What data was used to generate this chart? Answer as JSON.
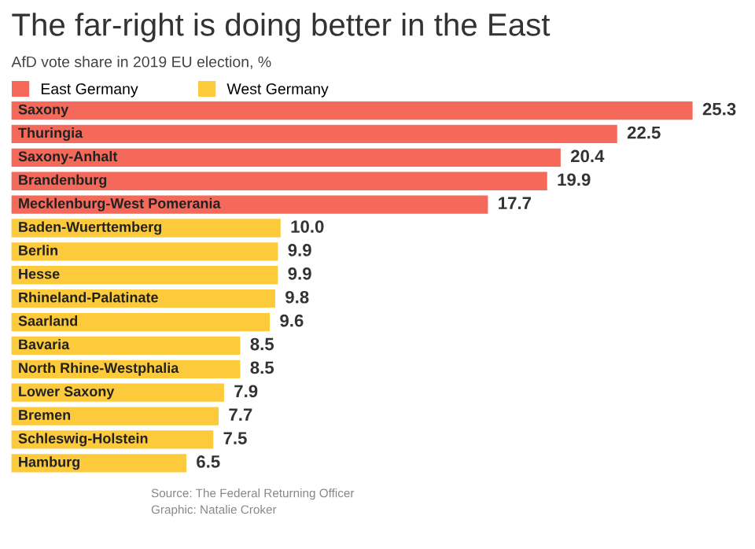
{
  "chart_data": {
    "type": "bar",
    "orientation": "horizontal",
    "title": "The far-right is doing better in the East",
    "subtitle": "AfD vote share in 2019 EU election, %",
    "categories": [
      "Saxony",
      "Thuringia",
      "Saxony-Anhalt",
      "Brandenburg",
      "Mecklenburg-West Pomerania",
      "Baden-Wuerttemberg",
      "Berlin",
      "Hesse",
      "Rhineland-Palatinate",
      "Saarland",
      "Bavaria",
      "North Rhine-Westphalia",
      "Lower Saxony",
      "Bremen",
      "Schleswig-Holstein",
      "Hamburg"
    ],
    "series": [
      {
        "name": "East Germany",
        "color": "#f4695a",
        "values": [
          25.3,
          22.5,
          20.4,
          19.9,
          17.7,
          null,
          null,
          null,
          null,
          null,
          null,
          null,
          null,
          null,
          null,
          null
        ],
        "value_labels": [
          "25.3",
          "22.5",
          "20.4",
          "19.9",
          "17.7",
          null,
          null,
          null,
          null,
          null,
          null,
          null,
          null,
          null,
          null,
          null
        ]
      },
      {
        "name": "West Germany",
        "color": "#fdca3c",
        "values": [
          null,
          null,
          null,
          null,
          null,
          10.0,
          9.9,
          9.9,
          9.8,
          9.6,
          8.5,
          8.5,
          7.9,
          7.7,
          7.5,
          6.5
        ],
        "value_labels": [
          null,
          null,
          null,
          null,
          null,
          "10.0",
          "9.9",
          "9.9",
          "9.8",
          "9.6",
          "8.5",
          "8.5",
          "7.9",
          "7.7",
          "7.5",
          "6.5"
        ]
      }
    ],
    "legend": "top left",
    "annotations": [
      "Source: The Federal Returning Officer",
      "Graphic: Natalie Croker"
    ]
  }
}
